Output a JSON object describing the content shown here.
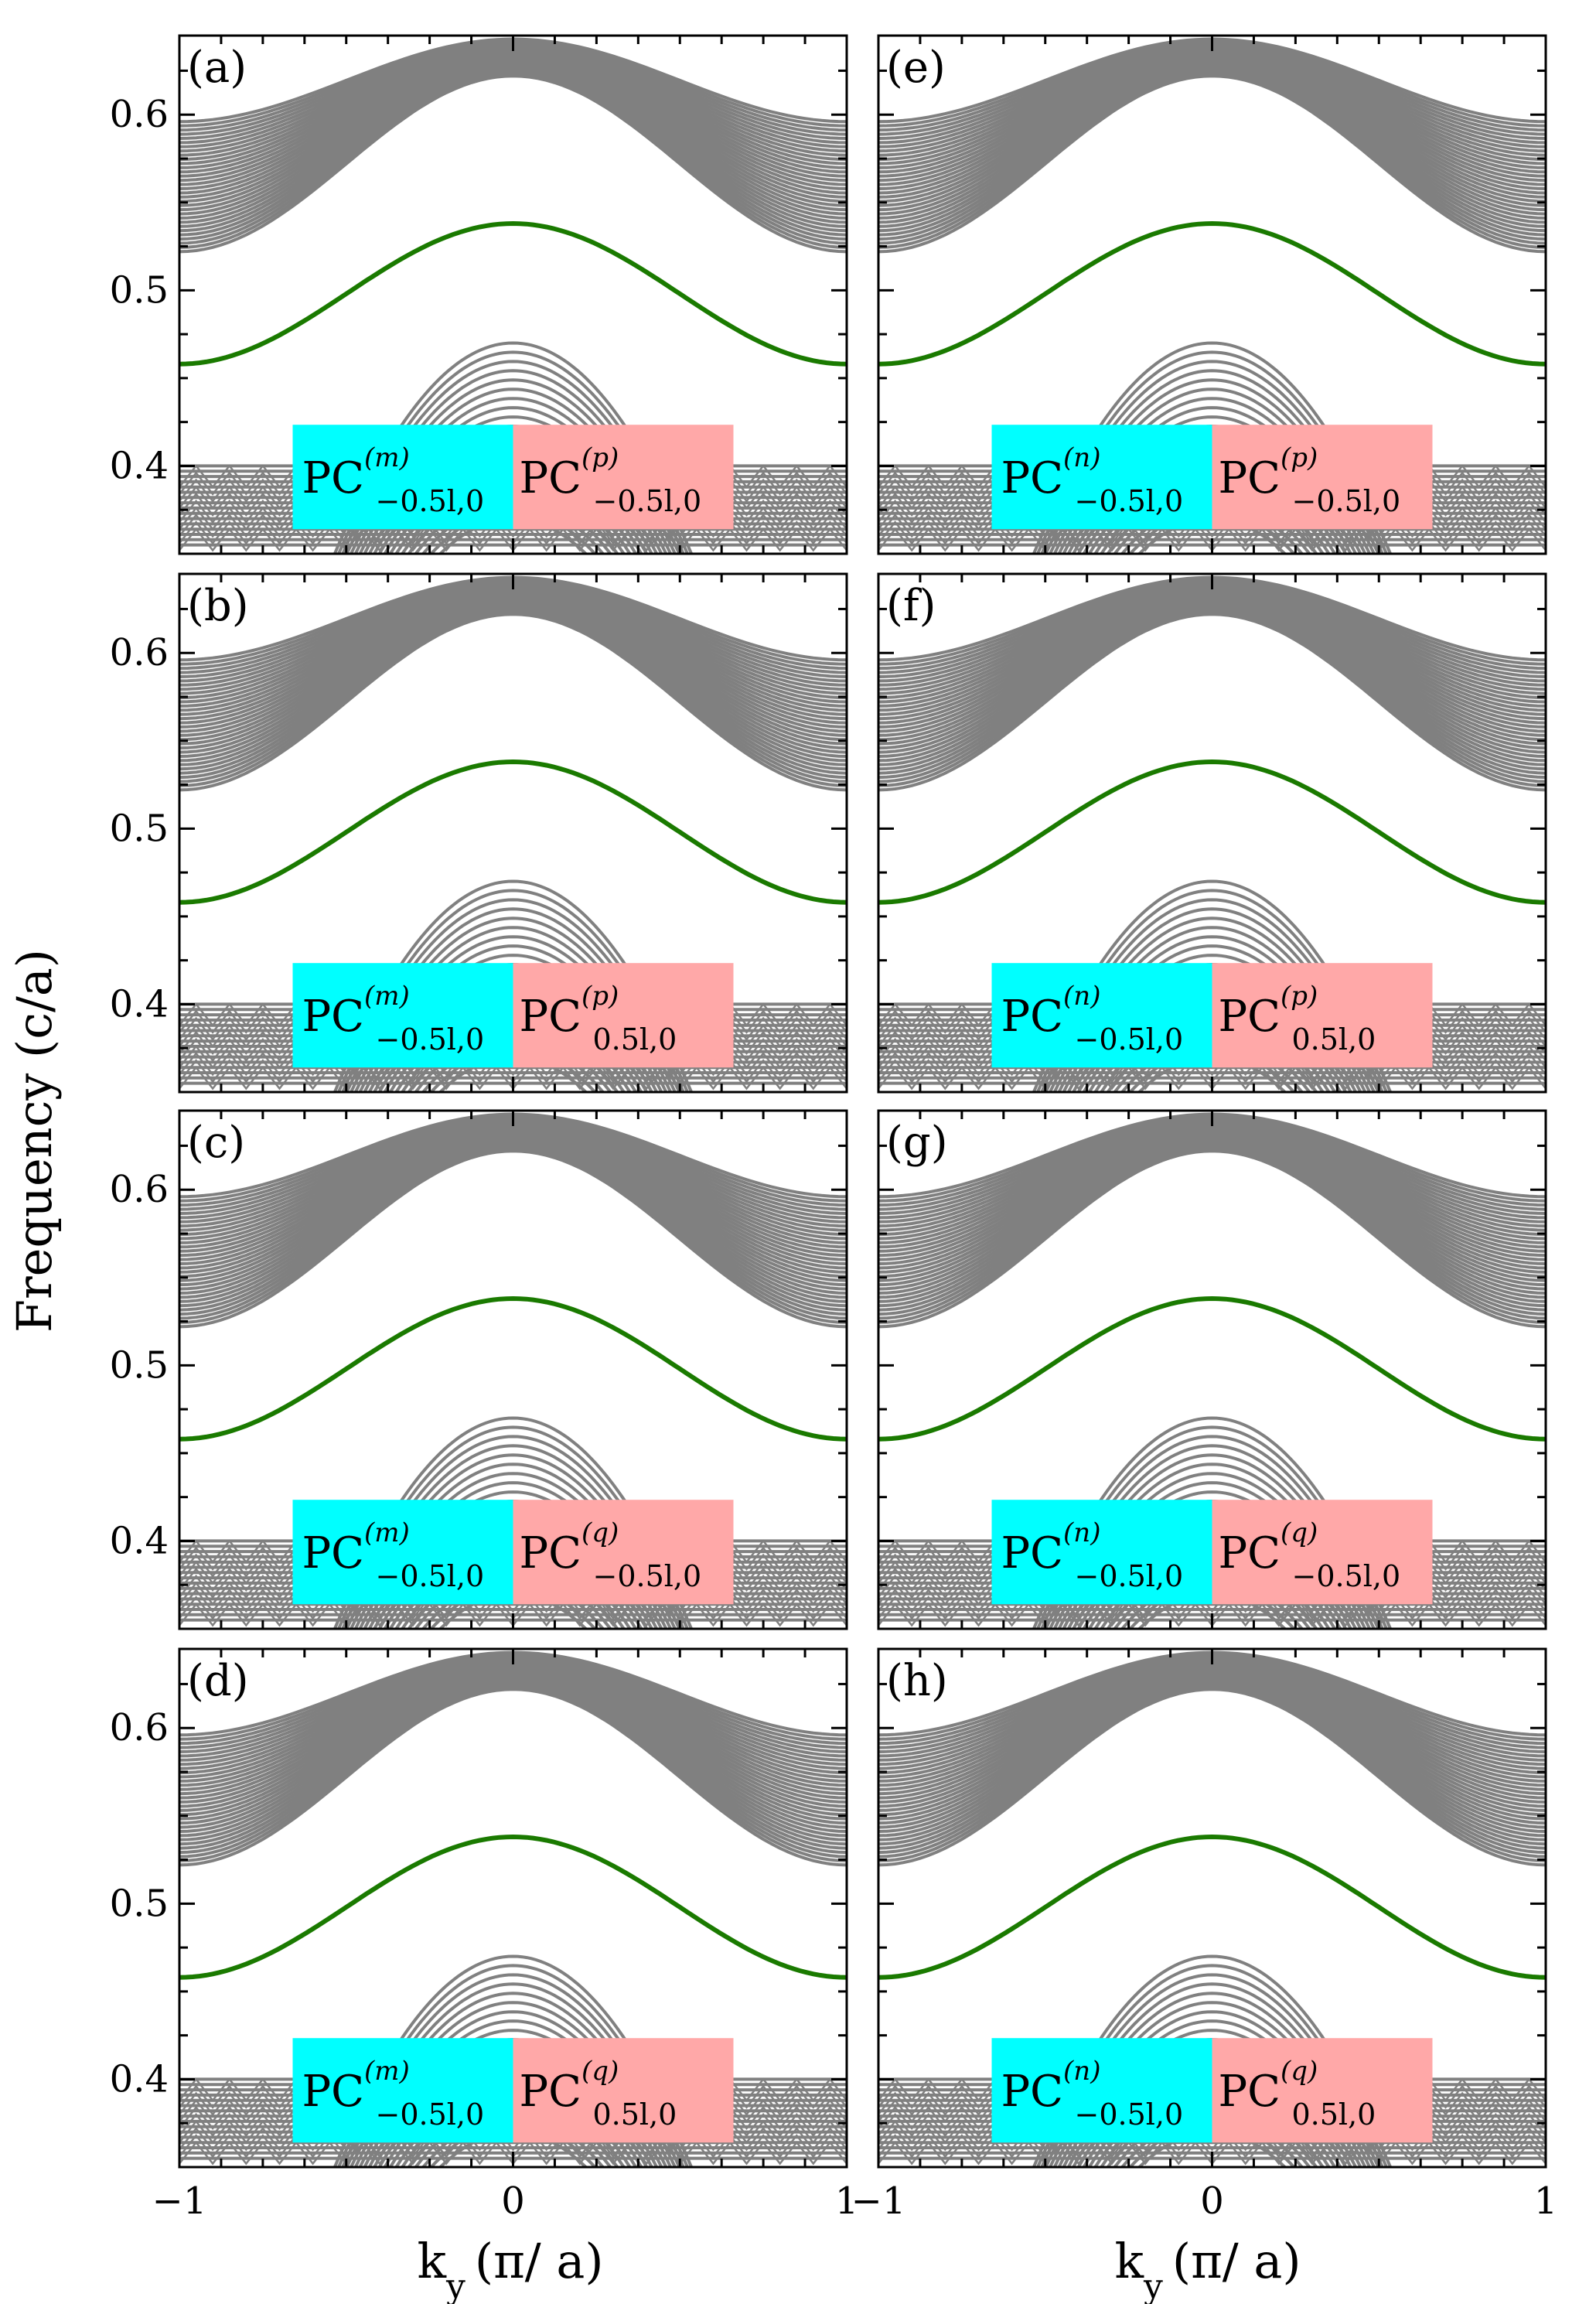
{
  "chart_data": {
    "type": "line",
    "layout": "4x2 grid of band-structure panels",
    "ylabel": "Frequency (c/a)",
    "xlabel_main": "k",
    "xlabel_sub": "y",
    "xlabel_unit": "(π/ a)",
    "xlim": [
      -1,
      1
    ],
    "ylim": [
      0.35,
      0.645
    ],
    "x_ticks": [
      -1,
      0,
      1
    ],
    "x_tick_labels": [
      "−1",
      "0",
      "1"
    ],
    "y_ticks": [
      0.4,
      0.5,
      0.6
    ],
    "y_tick_labels": [
      "0.4",
      "0.5",
      "0.6"
    ],
    "series_colors": {
      "bulk_bands": "#808080",
      "edge_state": "#1a7a00"
    },
    "inset_colors": {
      "left": "#00ffff",
      "right": "#ffa8a8"
    },
    "bands": {
      "upper_band_max_at_k0": 0.643,
      "upper_band_bottom_at_k0": 0.622,
      "upper_band_top_at_k1": 0.596,
      "upper_band_bottom_at_k1": 0.522,
      "edge_state_at_k0": 0.538,
      "edge_state_at_k1": 0.458,
      "lower_band_top_at_k0": 0.47,
      "lower_band_top_at_k1": 0.4
    },
    "edge_state": {
      "name": "edge state",
      "x": [
        -1,
        -0.75,
        -0.5,
        -0.25,
        0,
        0.25,
        0.5,
        0.75,
        1
      ],
      "y": [
        0.458,
        0.47,
        0.498,
        0.526,
        0.538,
        0.526,
        0.498,
        0.47,
        0.458
      ]
    },
    "panels": [
      {
        "label": "(a)",
        "left": {
          "main": "PC",
          "sup": "(m)",
          "sub": "−0.5l,0"
        },
        "right": {
          "main": "PC",
          "sup": "(p)",
          "sub": "−0.5l,0"
        }
      },
      {
        "label": "(e)",
        "left": {
          "main": "PC",
          "sup": "(n)",
          "sub": "−0.5l,0"
        },
        "right": {
          "main": "PC",
          "sup": "(p)",
          "sub": "−0.5l,0"
        }
      },
      {
        "label": "(b)",
        "left": {
          "main": "PC",
          "sup": "(m)",
          "sub": "−0.5l,0"
        },
        "right": {
          "main": "PC",
          "sup": "(p)",
          "sub": "0.5l,0"
        }
      },
      {
        "label": "(f)",
        "left": {
          "main": "PC",
          "sup": "(n)",
          "sub": "−0.5l,0"
        },
        "right": {
          "main": "PC",
          "sup": "(p)",
          "sub": "0.5l,0"
        }
      },
      {
        "label": "(c)",
        "left": {
          "main": "PC",
          "sup": "(m)",
          "sub": "−0.5l,0"
        },
        "right": {
          "main": "PC",
          "sup": "(q)",
          "sub": "−0.5l,0"
        }
      },
      {
        "label": "(g)",
        "left": {
          "main": "PC",
          "sup": "(n)",
          "sub": "−0.5l,0"
        },
        "right": {
          "main": "PC",
          "sup": "(q)",
          "sub": "−0.5l,0"
        }
      },
      {
        "label": "(d)",
        "left": {
          "main": "PC",
          "sup": "(m)",
          "sub": "−0.5l,0"
        },
        "right": {
          "main": "PC",
          "sup": "(q)",
          "sub": "0.5l,0"
        }
      },
      {
        "label": "(h)",
        "left": {
          "main": "PC",
          "sup": "(n)",
          "sub": "−0.5l,0"
        },
        "right": {
          "main": "PC",
          "sup": "(q)",
          "sub": "0.5l,0"
        }
      }
    ]
  }
}
